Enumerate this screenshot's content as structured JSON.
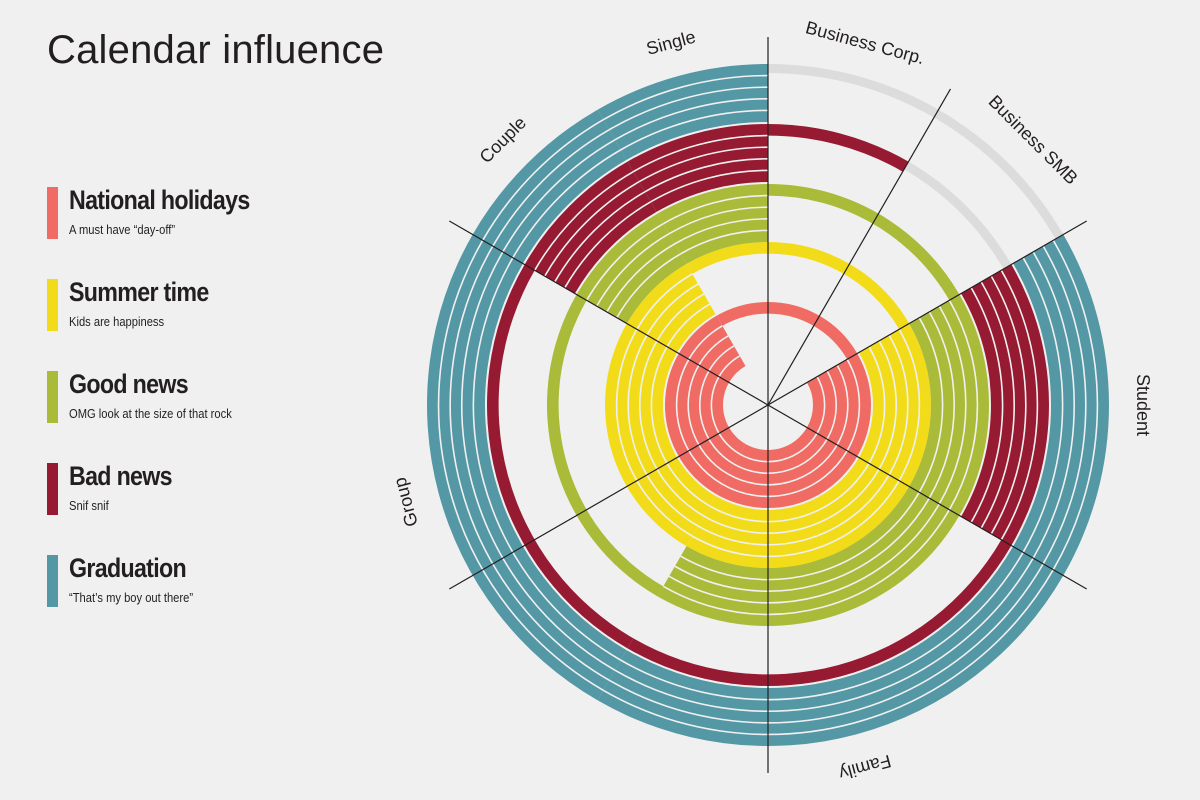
{
  "chart_data": {
    "type": "radial",
    "title": "Calendar influence",
    "segments": [
      "Business Corp.",
      "Business SMB",
      "Student",
      "Family",
      "Group",
      "Couple",
      "Single"
    ],
    "series": [
      {
        "name": "National holidays",
        "description": "A must have “day-off”",
        "color": "#ef6b63"
      },
      {
        "name": "Summer time",
        "description": "Kids are happiness",
        "color": "#f2dc1a"
      },
      {
        "name": "Good news",
        "description": "OMG look at the size of that rock",
        "color": "#a9bb38"
      },
      {
        "name": "Bad news",
        "description": "Snif snif",
        "color": "#961b32"
      },
      {
        "name": "Graduation",
        "description": "“That’s my boy out there”",
        "color": "#5497a5"
      }
    ],
    "rings": [
      {
        "series": "National holidays",
        "values": {
          "Business Corp.": 1,
          "Business SMB": 1,
          "Student": 5,
          "Family": 5,
          "Group": 5,
          "Couple": 5,
          "Single": 1
        }
      },
      {
        "series": "Summer time",
        "values": {
          "Business Corp.": 1,
          "Business SMB": 1,
          "Student": 5,
          "Family": 5,
          "Group": 5,
          "Couple": 5,
          "Single": 1
        }
      },
      {
        "series": "Good news",
        "values": {
          "Business Corp.": 1,
          "Business SMB": 1,
          "Student": 5,
          "Family": 5,
          "Group": 1,
          "Couple": 5,
          "Single": 5
        }
      },
      {
        "series": "Bad news",
        "values": {
          "Business Corp.": 1,
          "Business SMB": 0,
          "Student": 5,
          "Family": 1,
          "Group": 1,
          "Couple": 5,
          "Single": 5
        }
      },
      {
        "series": "Graduation",
        "values": {
          "Business Corp.": 0,
          "Business SMB": 0,
          "Student": 5,
          "Family": 5,
          "Group": 5,
          "Couple": 5,
          "Single": 5
        }
      }
    ],
    "max_value": 5,
    "inactive_color": "#dcdcdc",
    "axis_color": "#231f20"
  }
}
